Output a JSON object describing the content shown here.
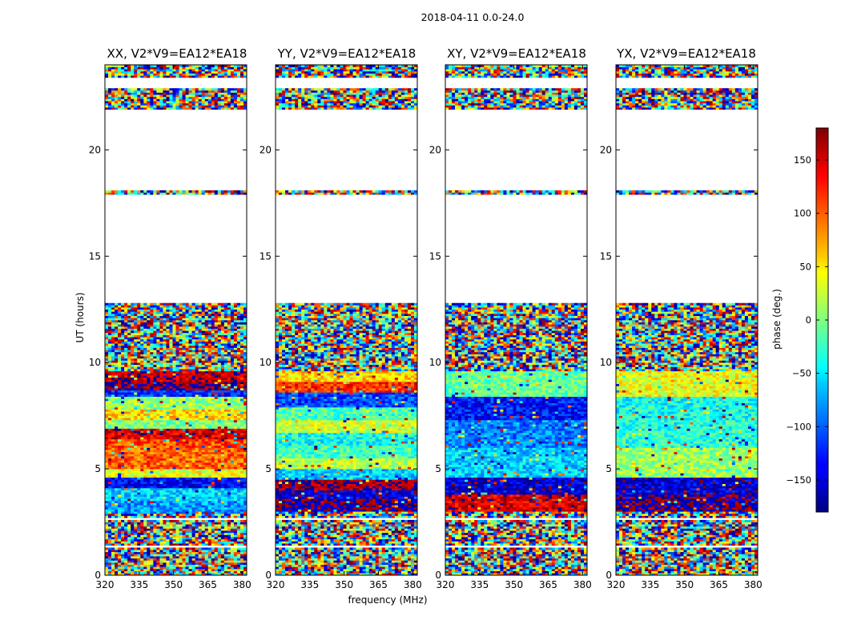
{
  "suptitle": "2018-04-11 0.0-24.0",
  "colorbar": {
    "label": "phase (deg.)",
    "ticks": [
      150,
      100,
      50,
      0,
      -50,
      -100,
      -150
    ],
    "tick_labels": [
      "150",
      "100",
      "50",
      "0",
      "−50",
      "−100",
      "−150"
    ],
    "range": [
      -180,
      180
    ],
    "colormap": "jet"
  },
  "chart_data": [
    {
      "type": "heatmap",
      "title": "XX, V2*V9=EA12*EA18",
      "ylabel": "UT (hours)",
      "xlabel": "",
      "xlim": [
        320,
        382
      ],
      "ylim": [
        0,
        24
      ],
      "xticks": [
        320,
        335,
        350,
        365,
        380
      ],
      "yticks": [
        0,
        5,
        10,
        15,
        20
      ],
      "blank_ranges_hours": [
        [
          12.8,
          17.85
        ],
        [
          18.05,
          21.9
        ],
        [
          22.9,
          23.4
        ],
        [
          2.6,
          2.75
        ],
        [
          1.35,
          1.45
        ]
      ],
      "bands": [
        {
          "t0": 9.1,
          "t1": 9.6,
          "phase": 160
        },
        {
          "t0": 8.7,
          "t1": 9.1,
          "phase": 180
        },
        {
          "t0": 8.4,
          "t1": 8.7,
          "phase": -120
        },
        {
          "t0": 7.8,
          "t1": 8.4,
          "phase": 10
        },
        {
          "t0": 7.3,
          "t1": 7.8,
          "phase": 60
        },
        {
          "t0": 6.9,
          "t1": 7.3,
          "phase": 0
        },
        {
          "t0": 6.4,
          "t1": 6.9,
          "phase": 150
        },
        {
          "t0": 6.0,
          "t1": 6.4,
          "phase": 110
        },
        {
          "t0": 5.0,
          "t1": 6.0,
          "phase": 100
        },
        {
          "t0": 4.6,
          "t1": 5.0,
          "phase": 40
        },
        {
          "t0": 4.1,
          "t1": 4.6,
          "phase": -140
        },
        {
          "t0": 3.5,
          "t1": 4.1,
          "phase": -60
        },
        {
          "t0": 2.9,
          "t1": 3.5,
          "phase": -80
        }
      ]
    },
    {
      "type": "heatmap",
      "title": "YY, V2*V9=EA12*EA18",
      "ylabel": "",
      "xlabel": "frequency (MHz)",
      "xlim": [
        320,
        382
      ],
      "ylim": [
        0,
        24
      ],
      "xticks": [
        320,
        335,
        350,
        365,
        380
      ],
      "yticks": [
        0,
        5,
        10,
        15,
        20
      ],
      "blank_ranges_hours": [
        [
          12.8,
          17.85
        ],
        [
          18.05,
          21.9
        ],
        [
          22.9,
          23.4
        ],
        [
          2.6,
          2.75
        ],
        [
          1.35,
          1.45
        ]
      ],
      "bands": [
        {
          "t0": 9.1,
          "t1": 9.6,
          "phase": 60
        },
        {
          "t0": 8.6,
          "t1": 9.1,
          "phase": 120
        },
        {
          "t0": 7.9,
          "t1": 8.6,
          "phase": -110
        },
        {
          "t0": 7.3,
          "t1": 7.9,
          "phase": -20
        },
        {
          "t0": 6.7,
          "t1": 7.3,
          "phase": 30
        },
        {
          "t0": 6.1,
          "t1": 6.7,
          "phase": -40
        },
        {
          "t0": 5.5,
          "t1": 6.1,
          "phase": -20
        },
        {
          "t0": 5.0,
          "t1": 5.5,
          "phase": 20
        },
        {
          "t0": 4.5,
          "t1": 5.0,
          "phase": -60
        },
        {
          "t0": 4.0,
          "t1": 4.5,
          "phase": 170
        },
        {
          "t0": 3.6,
          "t1": 4.0,
          "phase": -150
        },
        {
          "t0": 3.0,
          "t1": 3.6,
          "phase": -170
        }
      ]
    },
    {
      "type": "heatmap",
      "title": "XY, V2*V9=EA12*EA18",
      "ylabel": "",
      "xlabel": "",
      "xlim": [
        320,
        382
      ],
      "ylim": [
        0,
        24
      ],
      "xticks": [
        320,
        335,
        350,
        365,
        380
      ],
      "yticks": [
        0,
        5,
        10,
        15,
        20
      ],
      "blank_ranges_hours": [
        [
          12.8,
          17.85
        ],
        [
          18.05,
          21.9
        ],
        [
          22.9,
          23.4
        ],
        [
          2.6,
          2.75
        ],
        [
          1.35,
          1.45
        ]
      ],
      "bands": [
        {
          "t0": 8.4,
          "t1": 9.6,
          "phase": -10
        },
        {
          "t0": 7.3,
          "t1": 8.4,
          "phase": -130
        },
        {
          "t0": 6.0,
          "t1": 7.3,
          "phase": -90
        },
        {
          "t0": 4.6,
          "t1": 6.0,
          "phase": -60
        },
        {
          "t0": 3.8,
          "t1": 4.6,
          "phase": -150
        },
        {
          "t0": 3.0,
          "t1": 3.8,
          "phase": 150
        }
      ]
    },
    {
      "type": "heatmap",
      "title": "YX, V2*V9=EA12*EA18",
      "ylabel": "",
      "xlabel": "",
      "xlim": [
        320,
        382
      ],
      "ylim": [
        0,
        24
      ],
      "xticks": [
        320,
        335,
        350,
        365,
        380
      ],
      "yticks": [
        0,
        5,
        10,
        15,
        20
      ],
      "blank_ranges_hours": [
        [
          12.8,
          17.85
        ],
        [
          18.05,
          21.9
        ],
        [
          22.9,
          23.4
        ],
        [
          2.6,
          2.75
        ],
        [
          1.35,
          1.45
        ]
      ],
      "bands": [
        {
          "t0": 8.4,
          "t1": 9.6,
          "phase": 40
        },
        {
          "t0": 7.3,
          "t1": 8.4,
          "phase": -40
        },
        {
          "t0": 6.0,
          "t1": 7.3,
          "phase": -30
        },
        {
          "t0": 4.6,
          "t1": 6.0,
          "phase": 10
        },
        {
          "t0": 3.8,
          "t1": 4.6,
          "phase": -150
        },
        {
          "t0": 3.0,
          "t1": 3.8,
          "phase": -170
        }
      ]
    }
  ]
}
